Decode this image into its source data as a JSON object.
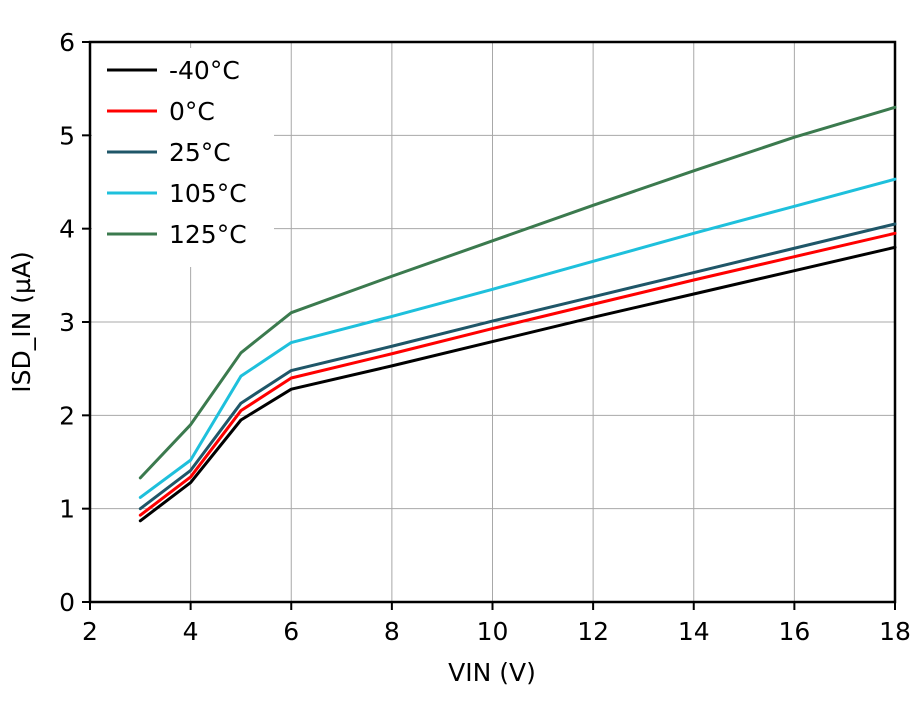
{
  "chart_data": {
    "type": "line",
    "title": "",
    "xlabel": "VIN (V)",
    "ylabel": "ISD_IN (µA)",
    "xlim": [
      2,
      18
    ],
    "ylim": [
      0,
      6
    ],
    "xticks": [
      2,
      4,
      6,
      8,
      10,
      12,
      14,
      16,
      18
    ],
    "yticks": [
      0,
      1,
      2,
      3,
      4,
      5,
      6
    ],
    "grid": true,
    "grid_color": "#a8a8a8",
    "frame_color": "#000000",
    "legend_position": "top-left",
    "x": [
      3,
      4,
      5,
      6,
      8,
      10,
      12,
      14,
      16,
      18
    ],
    "series": [
      {
        "name": "-40°C",
        "color": "#000000",
        "values": [
          0.87,
          1.28,
          1.95,
          2.28,
          2.53,
          2.79,
          3.05,
          3.3,
          3.55,
          3.8
        ]
      },
      {
        "name": "0°C",
        "color": "#ff0000",
        "values": [
          0.93,
          1.34,
          2.05,
          2.4,
          2.66,
          2.93,
          3.19,
          3.45,
          3.7,
          3.95
        ]
      },
      {
        "name": "25°C",
        "color": "#1f5668",
        "values": [
          1.0,
          1.41,
          2.13,
          2.48,
          2.74,
          3.01,
          3.27,
          3.53,
          3.79,
          4.05
        ]
      },
      {
        "name": "105°C",
        "color": "#1ec0dc",
        "values": [
          1.12,
          1.52,
          2.42,
          2.78,
          3.06,
          3.35,
          3.65,
          3.95,
          4.24,
          4.53
        ]
      },
      {
        "name": "125°C",
        "color": "#3b7a4e",
        "values": [
          1.33,
          1.9,
          2.67,
          3.1,
          3.49,
          3.87,
          4.25,
          4.62,
          4.98,
          5.3
        ]
      }
    ]
  }
}
